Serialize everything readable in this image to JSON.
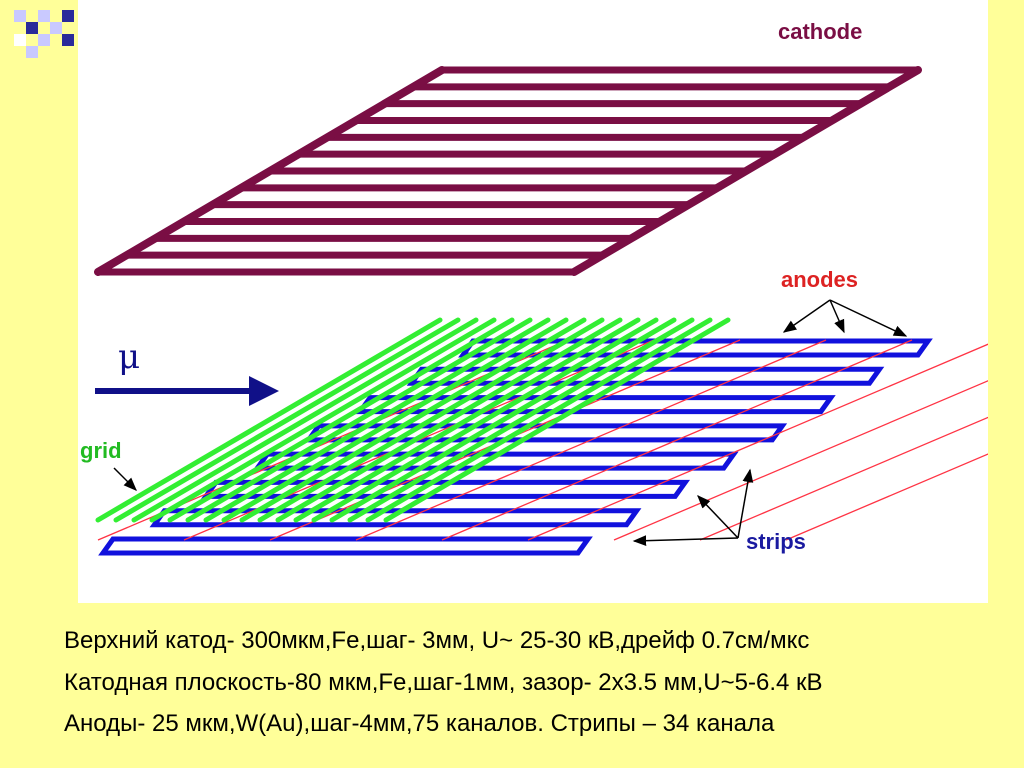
{
  "labels": {
    "cathode": "cathode",
    "anodes": "anodes",
    "grid": "grid",
    "strips": "strips",
    "muon": "μ"
  },
  "captions": [
    "Верхний катод- 300мкм,Fe,шаг- 3мм, U~ 25-30 кВ,дрейф 0.7см/мкс",
    "Катодная плоскость-80 мкм,Fe,шаг-1мм, зазор- 2x3.5 мм,U~5-6.4 кВ",
    "Аноды- 25 мкм,W(Au),шаг-4мм,75 каналов. Стрипы – 34 канала"
  ],
  "colors": {
    "background": "#ffff99",
    "cathode": "#7a0e44",
    "grid": "#33ee33",
    "strips": "#1111dd",
    "anodes": "#ff3344",
    "label_cathode": "#7a0e44",
    "label_anodes": "#dd2222",
    "label_grid": "#22bb22",
    "label_strips": "#1a1aa0",
    "muon_arrow": "#101088"
  }
}
